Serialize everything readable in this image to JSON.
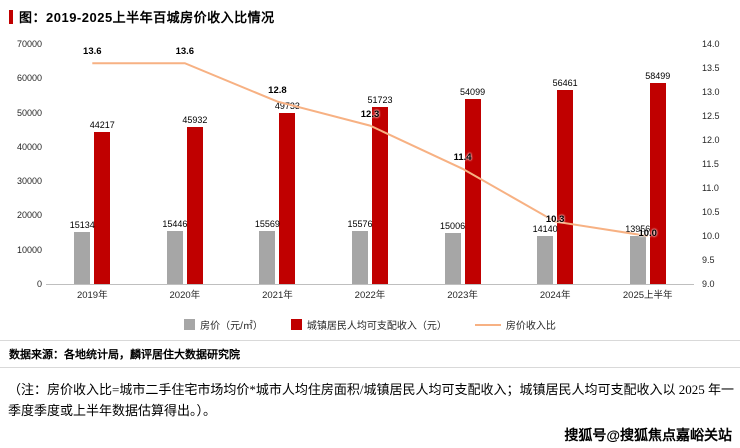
{
  "title": "图：2019-2025上半年百城房价收入比情况",
  "chart_data": {
    "type": "bar+line",
    "categories": [
      "2019年",
      "2020年",
      "2021年",
      "2022年",
      "2023年",
      "2024年",
      "2025上半年"
    ],
    "series": [
      {
        "name": "房价（元/㎡）",
        "type": "bar",
        "color": "#a6a6a6",
        "values": [
          15134,
          15446,
          15569,
          15576,
          15006,
          14140,
          13956
        ]
      },
      {
        "name": "城镇居民人均可支配收入（元）",
        "type": "bar",
        "color": "#c00000",
        "values": [
          44217,
          45932,
          49733,
          51723,
          54099,
          56461,
          58499
        ]
      },
      {
        "name": "房价收入比",
        "type": "line",
        "color": "#f7b183",
        "values": [
          13.6,
          13.6,
          12.8,
          12.3,
          11.4,
          10.3,
          10.0
        ]
      }
    ],
    "left_axis": {
      "min": 0,
      "max": 70000,
      "step": 10000,
      "ticks": [
        "0",
        "10000",
        "20000",
        "30000",
        "40000",
        "50000",
        "60000",
        "70000"
      ]
    },
    "right_axis": {
      "min": 9.0,
      "max": 14.0,
      "step": 0.5,
      "ticks": [
        "9.0",
        "9.5",
        "10.0",
        "10.5",
        "11.0",
        "11.5",
        "12.0",
        "12.5",
        "13.0",
        "13.5",
        "14.0"
      ]
    },
    "grid": false,
    "legend_position": "bottom"
  },
  "source": "数据来源：各地统计局，麟评居住大数据研究院",
  "note": "（注：房价收入比=城市二手住宅市场均价*城市人均住房面积/城镇居民人均可支配收入；城镇居民人均可支配收入以 2025 年一季度季度或上半年数据估算得出。）。",
  "watermark": "搜狐号@搜狐焦点嘉峪关站",
  "colors": {
    "accent": "#c00000",
    "house_price_bar": "#a6a6a6",
    "income_bar": "#c00000",
    "ratio_line": "#f7b183"
  }
}
